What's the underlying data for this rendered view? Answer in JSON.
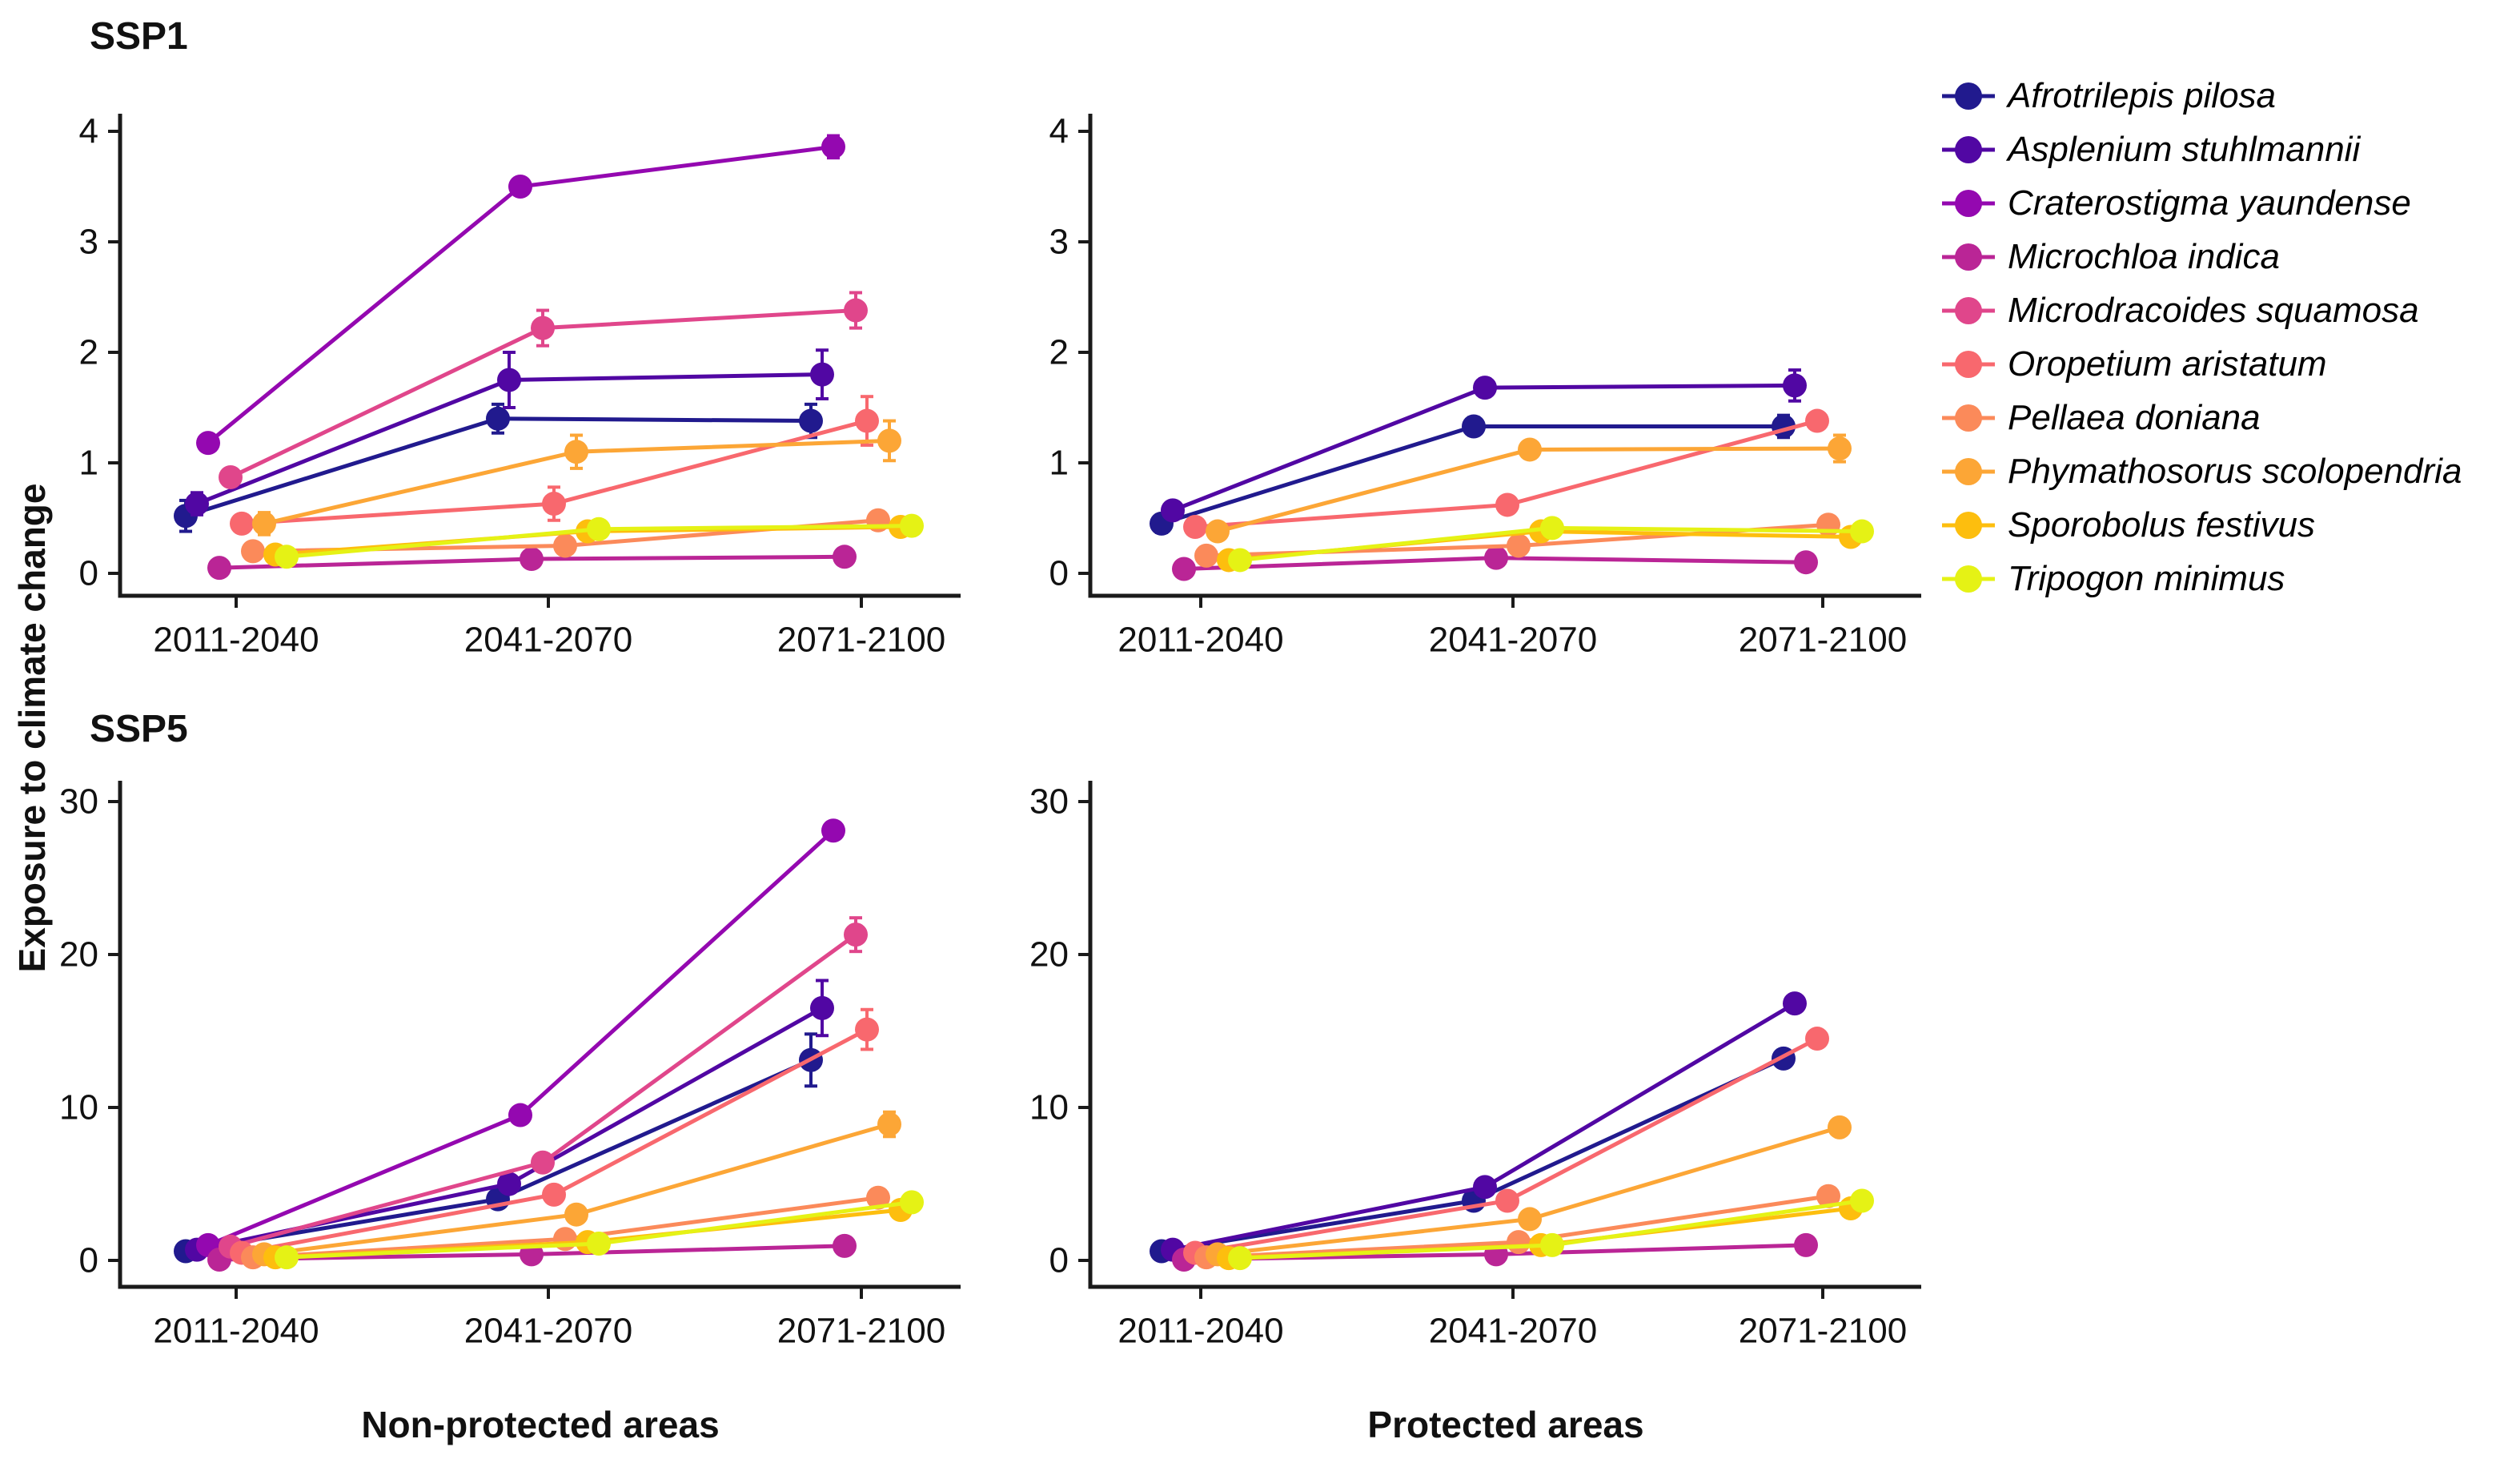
{
  "figure": {
    "y_axis_label": "Exposure to climate change",
    "row_titles": {
      "top": "SSP1",
      "bottom": "SSP5"
    },
    "col_labels": {
      "left": "Non-protected areas",
      "right": "Protected areas"
    },
    "x_categories": [
      "2011-2040",
      "2041-2070",
      "2071-2100"
    ]
  },
  "species": [
    {
      "name": "Afrotrilepis pilosa",
      "color": "#211a8e"
    },
    {
      "name": "Asplenium stuhlmannii",
      "color": "#5107a3"
    },
    {
      "name": "Craterostigma yaundense",
      "color": "#9408b0"
    },
    {
      "name": "Microchloa indica",
      "color": "#ba2596"
    },
    {
      "name": "Microdracoides squamosa",
      "color": "#e0468b"
    },
    {
      "name": "Oropetium aristatum",
      "color": "#f8686e"
    },
    {
      "name": "Pellaea doniana",
      "color": "#fb8a5a"
    },
    {
      "name": "Phymathosorus scolopendria",
      "color": "#fca636"
    },
    {
      "name": "Sporobolus festivus",
      "color": "#fdbe0e"
    },
    {
      "name": "Tripogon minimus",
      "color": "#e5f215"
    }
  ],
  "chart_data": [
    {
      "type": "line",
      "title": "SSP1 Non-protected areas",
      "scenario": "SSP1",
      "area": "Non-protected areas",
      "categories": [
        "2011-2040",
        "2041-2070",
        "2071-2100"
      ],
      "ylim": [
        0,
        4
      ],
      "yticks": [
        0,
        1,
        2,
        3,
        4
      ],
      "grid": false,
      "series": [
        {
          "name": "Afrotrilepis pilosa",
          "values": [
            0.52,
            1.4,
            1.38
          ],
          "errors": [
            0.14,
            0.13,
            0.15
          ]
        },
        {
          "name": "Asplenium stuhlmannii",
          "values": [
            0.63,
            1.75,
            1.8
          ],
          "errors": [
            0.1,
            0.25,
            0.22
          ]
        },
        {
          "name": "Craterostigma yaundense",
          "values": [
            1.18,
            3.5,
            3.86
          ],
          "errors": [
            0,
            0,
            0.1
          ]
        },
        {
          "name": "Microchloa indica",
          "values": [
            0.05,
            0.13,
            0.15
          ],
          "errors": [
            0,
            0,
            0
          ]
        },
        {
          "name": "Microdracoides squamosa",
          "values": [
            0.87,
            2.22,
            2.38
          ],
          "errors": [
            0,
            0.16,
            0.16
          ]
        },
        {
          "name": "Oropetium aristatum",
          "values": [
            0.45,
            0.63,
            1.38
          ],
          "errors": [
            0,
            0.15,
            0.22
          ]
        },
        {
          "name": "Pellaea doniana",
          "values": [
            0.2,
            0.25,
            0.48
          ],
          "errors": [
            0,
            0.05,
            0.08
          ]
        },
        {
          "name": "Phymathosorus scolopendria",
          "values": [
            0.45,
            1.1,
            1.2
          ],
          "errors": [
            0.1,
            0.15,
            0.18
          ]
        },
        {
          "name": "Sporobolus festivus",
          "values": [
            0.17,
            0.38,
            0.42
          ],
          "errors": [
            0,
            0.05,
            0.05
          ]
        },
        {
          "name": "Tripogon minimus",
          "values": [
            0.15,
            0.4,
            0.43
          ],
          "errors": [
            0,
            0.05,
            0.05
          ]
        }
      ]
    },
    {
      "type": "line",
      "title": "SSP1 Protected areas",
      "scenario": "SSP1",
      "area": "Protected areas",
      "categories": [
        "2011-2040",
        "2041-2070",
        "2071-2100"
      ],
      "ylim": [
        0,
        4
      ],
      "yticks": [
        0,
        1,
        2,
        3,
        4
      ],
      "grid": false,
      "series": [
        {
          "name": "Afrotrilepis pilosa",
          "values": [
            0.45,
            1.33,
            1.33
          ],
          "errors": [
            0.08,
            0.08,
            0.1
          ]
        },
        {
          "name": "Asplenium stuhlmannii",
          "values": [
            0.57,
            1.68,
            1.7
          ],
          "errors": [
            0.05,
            0.08,
            0.14
          ]
        },
        {
          "name": "Microchloa indica",
          "values": [
            0.04,
            0.14,
            0.1
          ],
          "errors": [
            0,
            0,
            0
          ]
        },
        {
          "name": "Oropetium aristatum",
          "values": [
            0.42,
            0.62,
            1.38
          ],
          "errors": [
            0,
            0.06,
            0.06
          ]
        },
        {
          "name": "Pellaea doniana",
          "values": [
            0.16,
            0.25,
            0.44
          ],
          "errors": [
            0,
            0.05,
            0.06
          ]
        },
        {
          "name": "Phymathosorus scolopendria",
          "values": [
            0.38,
            1.12,
            1.13
          ],
          "errors": [
            0,
            0.06,
            0.12
          ]
        },
        {
          "name": "Sporobolus festivus",
          "values": [
            0.12,
            0.38,
            0.33
          ],
          "errors": [
            0,
            0,
            0
          ]
        },
        {
          "name": "Tripogon minimus",
          "values": [
            0.12,
            0.41,
            0.38
          ],
          "errors": [
            0,
            0,
            0
          ]
        }
      ]
    },
    {
      "type": "line",
      "title": "SSP5 Non-protected areas",
      "scenario": "SSP5",
      "area": "Non-protected areas",
      "categories": [
        "2011-2040",
        "2041-2070",
        "2071-2100"
      ],
      "ylim": [
        0,
        30
      ],
      "yticks": [
        0,
        10,
        20,
        30
      ],
      "grid": false,
      "series": [
        {
          "name": "Afrotrilepis pilosa",
          "values": [
            0.6,
            4.0,
            13.1
          ],
          "errors": [
            0,
            0.3,
            1.7
          ]
        },
        {
          "name": "Asplenium stuhlmannii",
          "values": [
            0.7,
            5.0,
            16.5
          ],
          "errors": [
            0,
            0.4,
            1.8
          ]
        },
        {
          "name": "Craterostigma yaundense",
          "values": [
            1.0,
            9.5,
            28.1
          ],
          "errors": [
            0,
            0.3,
            0.4
          ]
        },
        {
          "name": "Microchloa indica",
          "values": [
            0.05,
            0.4,
            0.95
          ],
          "errors": [
            0,
            0,
            0
          ]
        },
        {
          "name": "Microdracoides squamosa",
          "values": [
            0.9,
            6.4,
            21.3
          ],
          "errors": [
            0,
            0.3,
            1.1
          ]
        },
        {
          "name": "Oropetium aristatum",
          "values": [
            0.5,
            4.3,
            15.1
          ],
          "errors": [
            0,
            0.4,
            1.3
          ]
        },
        {
          "name": "Pellaea doniana",
          "values": [
            0.2,
            1.4,
            4.1
          ],
          "errors": [
            0,
            0,
            0.3
          ]
        },
        {
          "name": "Phymathosorus scolopendria",
          "values": [
            0.4,
            3.0,
            8.9
          ],
          "errors": [
            0,
            0.3,
            0.8
          ]
        },
        {
          "name": "Sporobolus festivus",
          "values": [
            0.2,
            1.2,
            3.3
          ],
          "errors": [
            0,
            0,
            0
          ]
        },
        {
          "name": "Tripogon minimus",
          "values": [
            0.2,
            1.1,
            3.8
          ],
          "errors": [
            0,
            0,
            0
          ]
        }
      ]
    },
    {
      "type": "line",
      "title": "SSP5 Protected areas",
      "scenario": "SSP5",
      "area": "Protected areas",
      "categories": [
        "2011-2040",
        "2041-2070",
        "2071-2100"
      ],
      "ylim": [
        0,
        30
      ],
      "yticks": [
        0,
        10,
        20,
        30
      ],
      "grid": false,
      "series": [
        {
          "name": "Afrotrilepis pilosa",
          "values": [
            0.6,
            3.9,
            13.2
          ],
          "errors": [
            0,
            0,
            0.4
          ]
        },
        {
          "name": "Asplenium stuhlmannii",
          "values": [
            0.7,
            4.8,
            16.8
          ],
          "errors": [
            0,
            0,
            0.3
          ]
        },
        {
          "name": "Microchloa indica",
          "values": [
            0.05,
            0.4,
            1.0
          ],
          "errors": [
            0,
            0,
            0
          ]
        },
        {
          "name": "Oropetium aristatum",
          "values": [
            0.5,
            3.9,
            14.5
          ],
          "errors": [
            0,
            0,
            0.3
          ]
        },
        {
          "name": "Pellaea doniana",
          "values": [
            0.2,
            1.2,
            4.2
          ],
          "errors": [
            0,
            0,
            0
          ]
        },
        {
          "name": "Phymathosorus scolopendria",
          "values": [
            0.4,
            2.7,
            8.7
          ],
          "errors": [
            0,
            0,
            0.3
          ]
        },
        {
          "name": "Sporobolus festivus",
          "values": [
            0.15,
            1.0,
            3.4
          ],
          "errors": [
            0,
            0,
            0
          ]
        },
        {
          "name": "Tripogon minimus",
          "values": [
            0.15,
            1.0,
            3.9
          ],
          "errors": [
            0,
            0,
            0
          ]
        }
      ]
    }
  ]
}
